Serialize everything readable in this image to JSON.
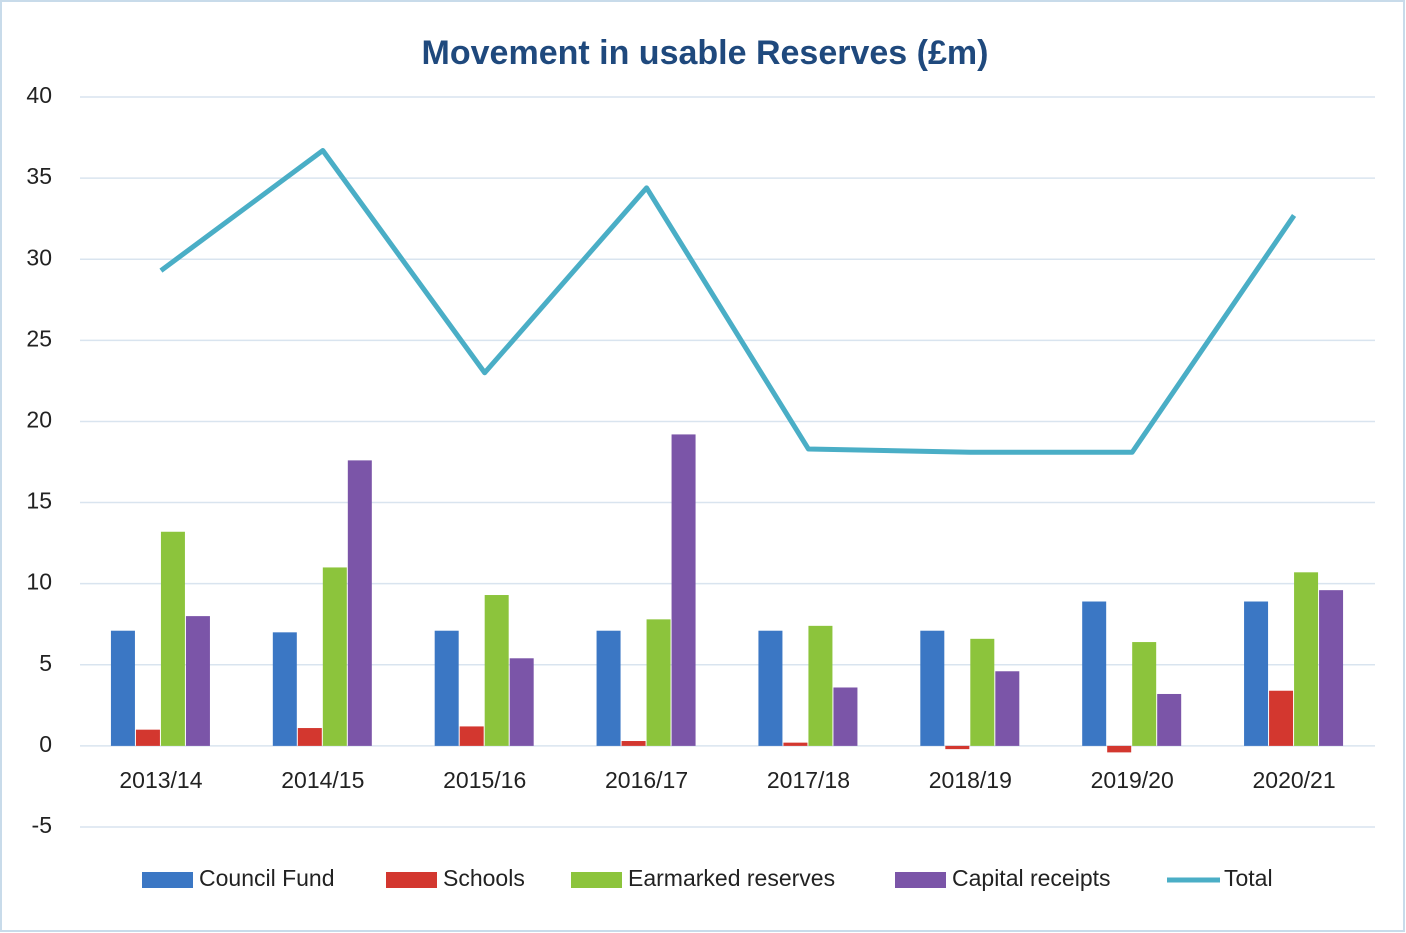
{
  "chart_data": {
    "type": "bar",
    "title": "Movement in usable Reserves (£m)",
    "categories": [
      "2013/14",
      "2014/15",
      "2015/16",
      "2016/17",
      "2017/18",
      "2018/19",
      "2019/20",
      "2020/21"
    ],
    "series": [
      {
        "name": "Council Fund",
        "color": "#3b77c4",
        "type": "bar",
        "values": [
          7.1,
          7.0,
          7.1,
          7.1,
          7.1,
          7.1,
          8.9,
          8.9
        ]
      },
      {
        "name": "Schools",
        "color": "#d3372f",
        "type": "bar",
        "values": [
          1.0,
          1.1,
          1.2,
          0.3,
          0.2,
          -0.2,
          -0.4,
          3.4
        ]
      },
      {
        "name": "Earmarked reserves",
        "color": "#8cc43c",
        "type": "bar",
        "values": [
          13.2,
          11.0,
          9.3,
          7.8,
          7.4,
          6.6,
          6.4,
          10.7
        ]
      },
      {
        "name": "Capital receipts",
        "color": "#7b55a8",
        "type": "bar",
        "values": [
          8.0,
          17.6,
          5.4,
          19.2,
          3.6,
          4.6,
          3.2,
          9.6
        ]
      },
      {
        "name": "Total",
        "color": "#4aaec6",
        "type": "line",
        "values": [
          29.3,
          36.7,
          23.0,
          34.4,
          18.3,
          18.1,
          18.1,
          32.7
        ]
      }
    ],
    "ylim": [
      -5,
      40
    ],
    "yticks": [
      -5,
      0,
      5,
      10,
      15,
      20,
      25,
      30,
      35,
      40
    ],
    "grid": true,
    "legend": "bottom"
  }
}
